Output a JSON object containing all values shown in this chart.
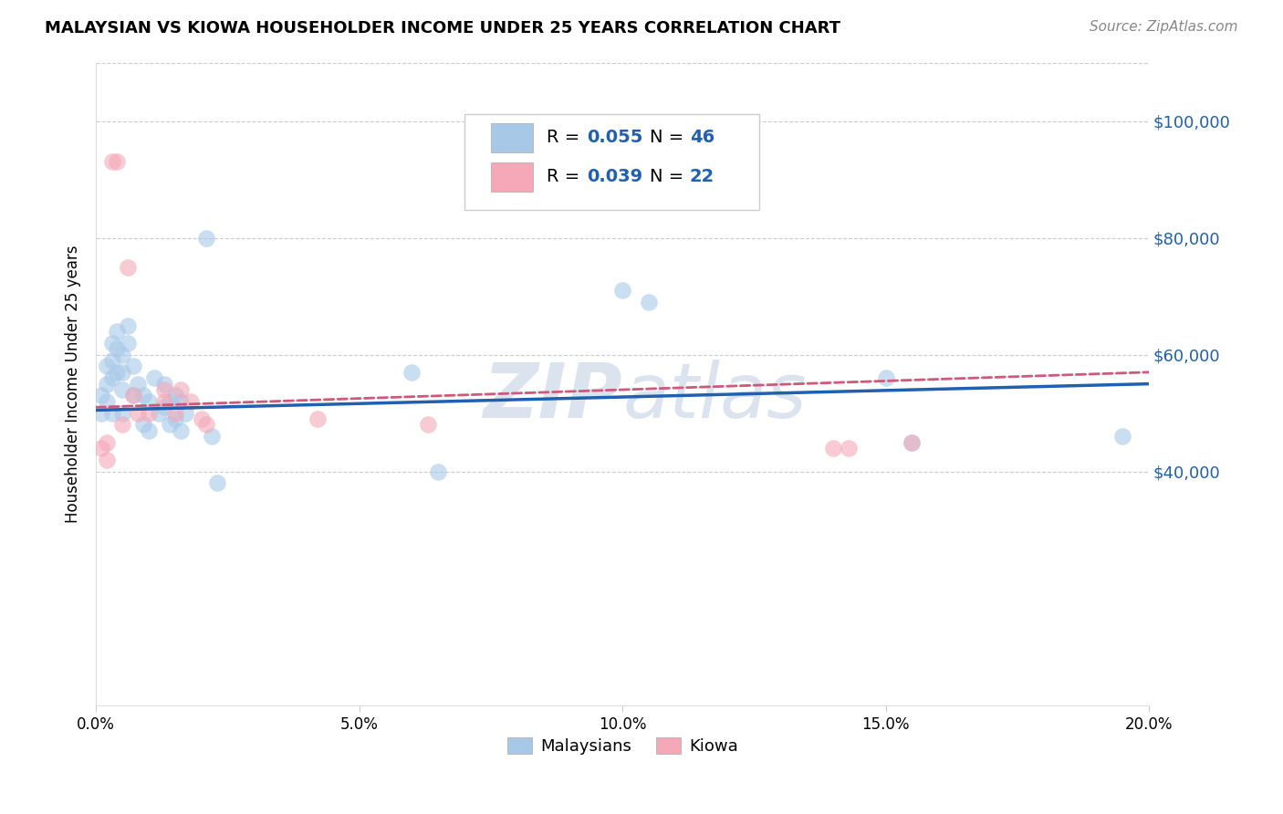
{
  "title": "MALAYSIAN VS KIOWA HOUSEHOLDER INCOME UNDER 25 YEARS CORRELATION CHART",
  "source": "Source: ZipAtlas.com",
  "ylabel": "Householder Income Under 25 years",
  "xlabel_ticks": [
    "0.0%",
    "5.0%",
    "10.0%",
    "15.0%",
    "20.0%"
  ],
  "xlabel_vals": [
    0.0,
    0.05,
    0.1,
    0.15,
    0.2
  ],
  "ylim": [
    0,
    110000
  ],
  "xlim": [
    0.0,
    0.2
  ],
  "yticks": [
    40000,
    60000,
    80000,
    100000
  ],
  "ytick_labels": [
    "$40,000",
    "$60,000",
    "$80,000",
    "$100,000"
  ],
  "malaysian_color": "#a8c8e8",
  "kiowa_color": "#f4a8b8",
  "trend_malaysian_color": "#2060b0",
  "trend_kiowa_color": "#d05878",
  "watermark_color": "#ccd8e8",
  "malaysian_x": [
    0.001,
    0.001,
    0.002,
    0.002,
    0.002,
    0.003,
    0.003,
    0.003,
    0.003,
    0.004,
    0.004,
    0.004,
    0.005,
    0.005,
    0.005,
    0.005,
    0.006,
    0.006,
    0.007,
    0.007,
    0.008,
    0.009,
    0.009,
    0.01,
    0.01,
    0.011,
    0.012,
    0.013,
    0.013,
    0.014,
    0.014,
    0.015,
    0.015,
    0.016,
    0.016,
    0.017,
    0.021,
    0.022,
    0.023,
    0.06,
    0.065,
    0.1,
    0.105,
    0.15,
    0.155,
    0.195
  ],
  "malaysian_y": [
    53000,
    50000,
    58000,
    55000,
    52000,
    62000,
    59000,
    56000,
    50000,
    64000,
    61000,
    57000,
    60000,
    57000,
    54000,
    50000,
    65000,
    62000,
    58000,
    53000,
    55000,
    53000,
    48000,
    52000,
    47000,
    56000,
    50000,
    55000,
    51000,
    52000,
    48000,
    53000,
    49000,
    52000,
    47000,
    50000,
    80000,
    46000,
    38000,
    57000,
    40000,
    71000,
    69000,
    56000,
    45000,
    46000
  ],
  "kiowa_x": [
    0.001,
    0.002,
    0.002,
    0.003,
    0.004,
    0.005,
    0.006,
    0.007,
    0.008,
    0.01,
    0.013,
    0.013,
    0.015,
    0.016,
    0.018,
    0.02,
    0.021,
    0.042,
    0.063,
    0.14,
    0.143,
    0.155
  ],
  "kiowa_y": [
    44000,
    45000,
    42000,
    93000,
    93000,
    48000,
    75000,
    53000,
    50000,
    50000,
    54000,
    52000,
    50000,
    54000,
    52000,
    49000,
    48000,
    49000,
    48000,
    44000,
    44000,
    45000
  ]
}
